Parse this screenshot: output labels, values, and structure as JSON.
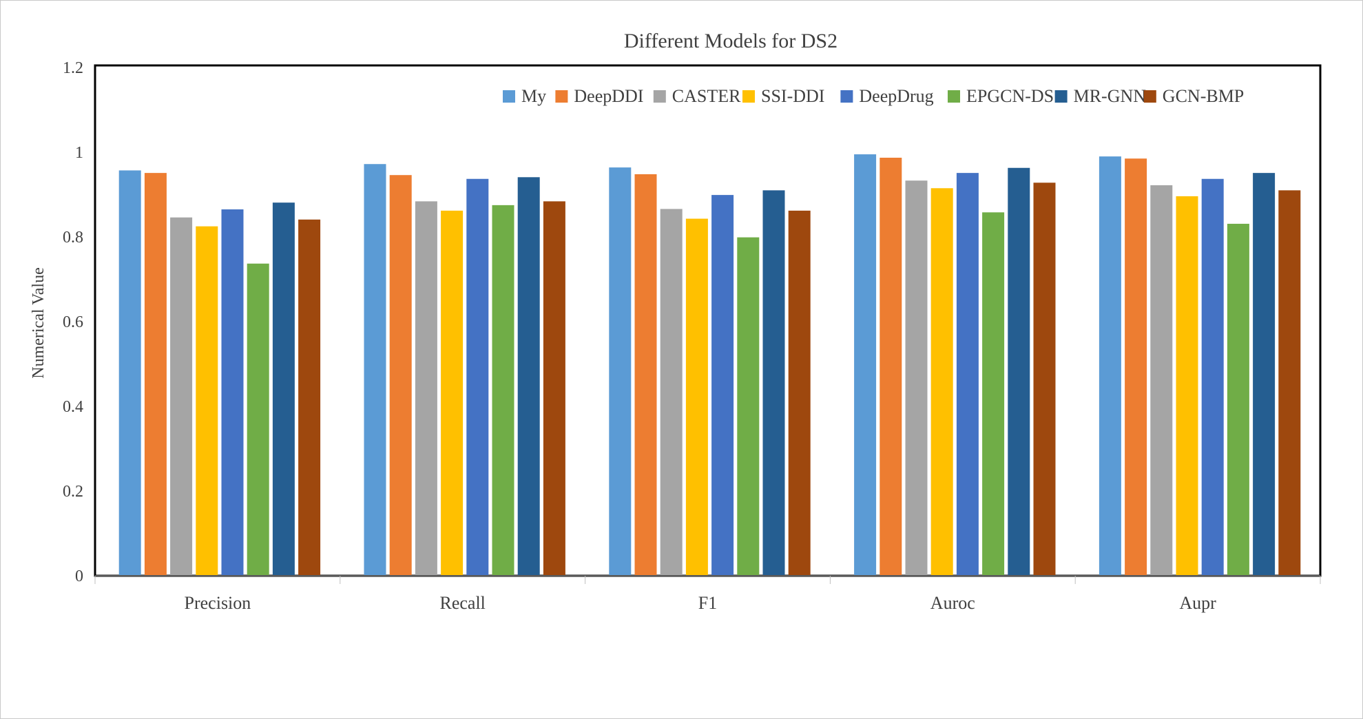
{
  "chart_data": {
    "type": "bar",
    "title": "Different Models for DS2",
    "xlabel": "",
    "ylabel": "Numerical Value",
    "ylim": [
      0,
      1.2
    ],
    "yticks": [
      0,
      0.2,
      0.4,
      0.6,
      0.8,
      1,
      1.2
    ],
    "ytick_labels": [
      "0",
      "0.2",
      "0.4",
      "0.6",
      "0.8",
      "1",
      "1.2"
    ],
    "grid": false,
    "legend_position": "top-right",
    "categories": [
      "Precision",
      "Recall",
      "F1",
      "Auroc",
      "Aupr"
    ],
    "series": [
      {
        "name": "My",
        "color": "#5B9BD5",
        "values": [
          0.957,
          0.972,
          0.964,
          0.995,
          0.99
        ]
      },
      {
        "name": "DeepDDI",
        "color": "#ED7D31",
        "values": [
          0.951,
          0.946,
          0.948,
          0.987,
          0.985
        ]
      },
      {
        "name": "CASTER",
        "color": "#A5A5A5",
        "values": [
          0.846,
          0.884,
          0.866,
          0.933,
          0.922
        ]
      },
      {
        "name": "SSI-DDI",
        "color": "#FFC000",
        "values": [
          0.825,
          0.862,
          0.843,
          0.915,
          0.896
        ]
      },
      {
        "name": "DeepDrug",
        "color": "#4472C4",
        "values": [
          0.865,
          0.937,
          0.899,
          0.951,
          0.937
        ]
      },
      {
        "name": "EPGCN-DS",
        "color": "#70AD47",
        "values": [
          0.737,
          0.875,
          0.799,
          0.858,
          0.831
        ]
      },
      {
        "name": "MR-GNN",
        "color": "#255E91",
        "values": [
          0.881,
          0.941,
          0.91,
          0.963,
          0.951
        ]
      },
      {
        "name": "GCN-BMP",
        "color": "#9E480E",
        "values": [
          0.841,
          0.884,
          0.862,
          0.928,
          0.91
        ]
      }
    ]
  }
}
